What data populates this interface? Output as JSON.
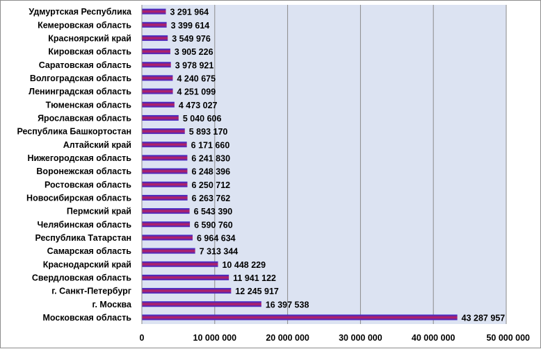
{
  "chart_data": {
    "type": "bar",
    "orientation": "horizontal",
    "title": "",
    "xlabel": "",
    "ylabel": "",
    "categories": [
      "Удмуртская Республика",
      "Кемеровская область",
      "Красноярский край",
      "Кировская область",
      "Саратовская область",
      "Волгоградская область",
      "Ленинградская область",
      "Тюменская область",
      "Ярославская область",
      "Республика Башкортостан",
      "Алтайский край",
      "Нижегородская область",
      "Воронежская область",
      "Ростовская область",
      "Новосибирская область",
      "Пермский край",
      "Челябинская область",
      "Республика Татарстан",
      "Самарская область",
      "Краснодарский край",
      "Свердловская область",
      "г. Санкт-Петербург",
      "г. Москва",
      "Московская область"
    ],
    "values": [
      3291964,
      3399614,
      3549976,
      3905226,
      3978921,
      4240675,
      4251099,
      4473027,
      5040606,
      5893170,
      6171660,
      6241830,
      6248396,
      6250712,
      6263762,
      6543390,
      6590760,
      6964634,
      7313344,
      10448229,
      11941122,
      12245917,
      16397538,
      43287957
    ],
    "value_labels": [
      "3 291 964",
      "3 399 614",
      "3 549 976",
      "3 905 226",
      "3 978 921",
      "4 240 675",
      "4 251 099",
      "4 473 027",
      "5 040 606",
      "5 893 170",
      "6 171 660",
      "6 241 830",
      "6 248 396",
      "6 250 712",
      "6 263 762",
      "6 543 390",
      "6 590 760",
      "6 964 634",
      "7 313 344",
      "10 448 229",
      "11 941 122",
      "12 245 917",
      "16 397 538",
      "43 287 957"
    ],
    "xlim": [
      0,
      50000000
    ],
    "xticks": [
      0,
      10000000,
      20000000,
      30000000,
      40000000,
      50000000
    ],
    "xtick_labels": [
      "0",
      "10 000 000",
      "20 000 000",
      "30 000 000",
      "40 000 000",
      "50 000 000"
    ],
    "grid": true,
    "legend": "none",
    "colors": {
      "bar_top": "#2a2ad8",
      "bar_mid": "#c0205a",
      "bar_bottom": "#3a2ad0",
      "plot_background": "#dce3f2",
      "gridline": "#8a8a8a"
    }
  }
}
